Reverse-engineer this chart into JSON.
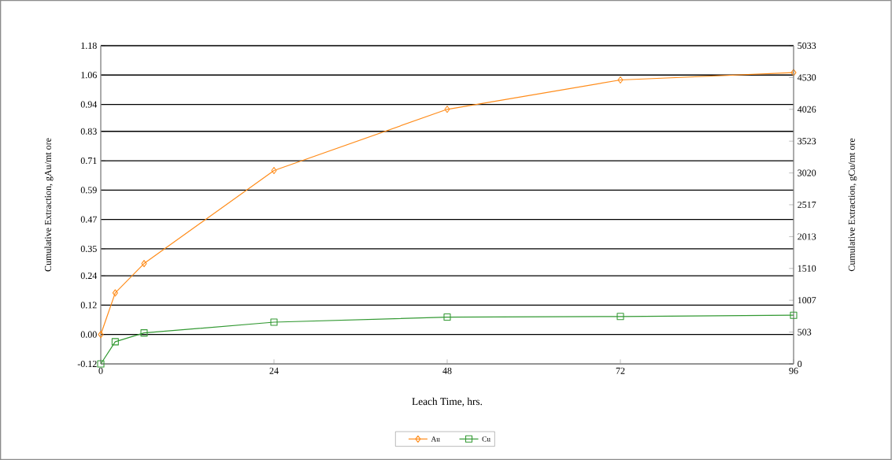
{
  "chart_data": {
    "type": "line",
    "xlabel": "Leach Time, hrs.",
    "ylabel": "Cumulative Extraction, gAu/mt ore",
    "y2label": "Cumulative Extraction, gCu/mt ore",
    "xlim": [
      0,
      96
    ],
    "xticks": [
      0,
      24,
      48,
      72,
      96
    ],
    "ylim": [
      -0.12,
      1.18
    ],
    "yticks": [
      -0.12,
      {
        "value": 0,
        "label": "0.00"
      },
      0.12,
      0.24,
      0.35,
      0.47,
      0.59,
      0.71,
      0.83,
      0.94,
      1.06,
      1.18
    ],
    "y2lim": [
      0,
      5033
    ],
    "y2ticks": [
      0,
      503,
      1007,
      1510,
      2013,
      2517,
      3020,
      3523,
      4026,
      4530,
      5033
    ],
    "grid": "y",
    "legend": "bottom",
    "line_style": "solid",
    "series": [
      {
        "name": "Au",
        "color": "#ff8c1a",
        "marker": "diamond",
        "x": [
          0,
          2,
          6,
          24,
          48,
          72,
          96
        ],
        "values": [
          0.0,
          0.17,
          0.29,
          0.67,
          0.92,
          1.04,
          1.07
        ]
      },
      {
        "name": "Cu",
        "color": "#339933",
        "marker": "square",
        "axis": "y2",
        "x": [
          0,
          2,
          6,
          24,
          48,
          72,
          96
        ],
        "values": [
          0,
          350,
          490,
          660,
          740,
          750,
          770
        ]
      }
    ]
  }
}
